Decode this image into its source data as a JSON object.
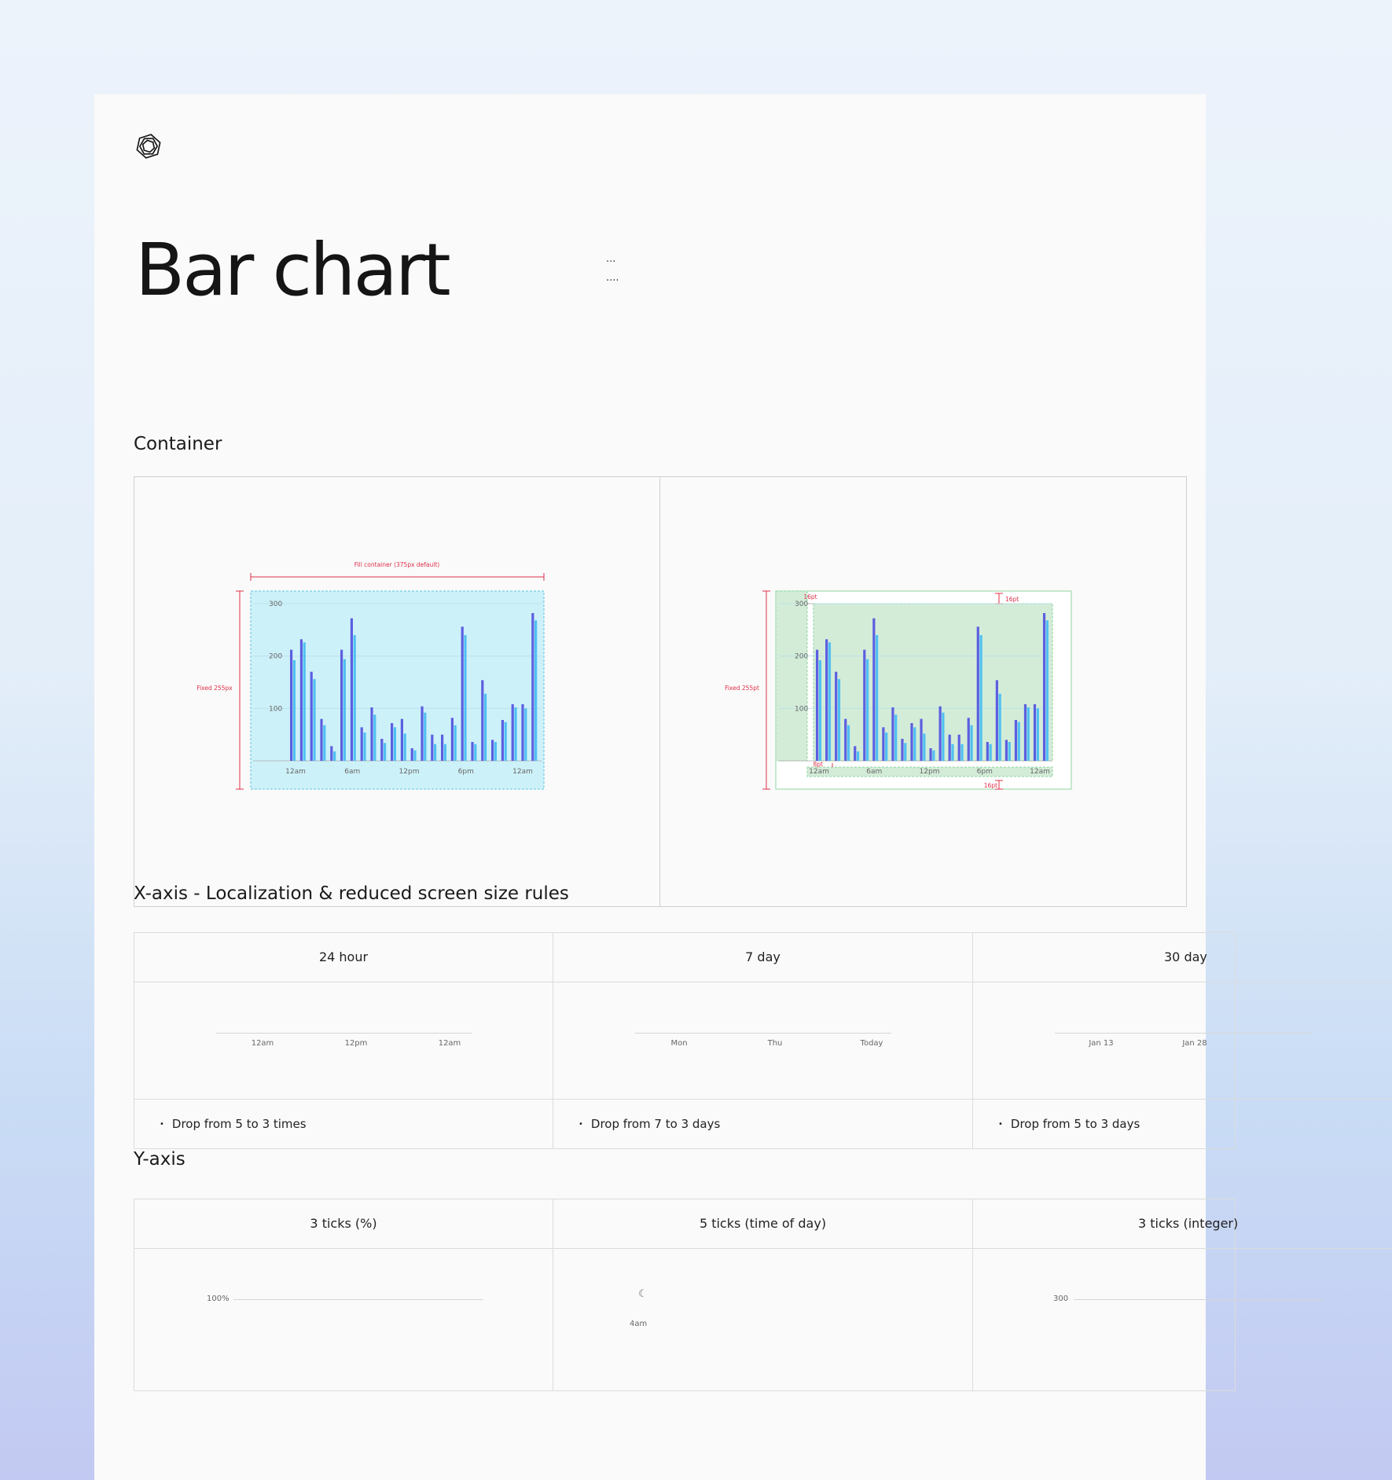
{
  "page": {
    "title": "Bar chart",
    "menu_dots": [
      "...",
      "...."
    ]
  },
  "container_section": {
    "title": "Container",
    "left_panel": {
      "width_note": "Fill container (375px default)",
      "height_note": "Fixed 255px"
    },
    "right_panel": {
      "height_note": "Fixed 255pt",
      "padding_top": "16pt",
      "padding_top_right": "16pt",
      "padding_bottom": "16pt",
      "gap_x_axis": "8pt"
    }
  },
  "chart_data": [
    {
      "type": "bar",
      "y_ticks": [
        "300",
        "200",
        "100"
      ],
      "ylim": [
        0,
        300
      ],
      "x_ticks": [
        "12am",
        "6am",
        "12pm",
        "6pm",
        "12am"
      ],
      "grid": true,
      "series": [
        {
          "color": "#5c5fe0",
          "values": [
            212,
            232,
            170,
            80,
            28,
            212,
            272,
            64,
            102,
            42,
            72,
            80,
            24,
            104,
            50,
            50,
            82,
            256,
            36,
            154,
            40,
            78,
            108,
            108,
            282
          ]
        },
        {
          "color": "#4fc0f2",
          "values": [
            192,
            226,
            156,
            68,
            18,
            194,
            240,
            54,
            88,
            34,
            64,
            52,
            20,
            92,
            32,
            32,
            68,
            240,
            32,
            128,
            36,
            74,
            102,
            100,
            268
          ]
        }
      ]
    },
    {
      "type": "bar",
      "y_ticks": [
        "300",
        "200",
        "100"
      ],
      "ylim": [
        0,
        300
      ],
      "x_ticks": [
        "12am",
        "6am",
        "12pm",
        "6pm",
        "12am"
      ],
      "grid": true,
      "series": [
        {
          "color": "#5c5fe0",
          "values": [
            212,
            232,
            170,
            80,
            28,
            212,
            272,
            64,
            102,
            42,
            72,
            80,
            24,
            104,
            50,
            50,
            82,
            256,
            36,
            154,
            40,
            78,
            108,
            108,
            282
          ]
        },
        {
          "color": "#4fc0f2",
          "values": [
            192,
            226,
            156,
            68,
            18,
            194,
            240,
            54,
            88,
            34,
            64,
            52,
            20,
            92,
            32,
            32,
            68,
            240,
            32,
            128,
            36,
            74,
            102,
            100,
            268
          ]
        }
      ]
    }
  ],
  "x_axis_section": {
    "title": "X-axis - Localization & reduced screen size rules",
    "columns": [
      {
        "header": "24 hour",
        "ticks": [
          "12am",
          "12pm",
          "12am"
        ],
        "rule": "Drop from 5 to 3 times"
      },
      {
        "header": "7 day",
        "ticks": [
          "Mon",
          "Thu",
          "Today"
        ],
        "rule": "Drop from 7 to 3 days"
      },
      {
        "header": "30 day",
        "ticks": [
          "Jan 13",
          "Jan 28"
        ],
        "rule": "Drop from 5 to 3 days"
      }
    ]
  },
  "y_axis_section": {
    "title": "Y-axis",
    "columns": [
      {
        "header": "3 ticks (%)",
        "labels": [
          "100%"
        ]
      },
      {
        "header": "5 ticks (time of day)",
        "labels": [
          "4am"
        ],
        "icon": "moon-icon"
      },
      {
        "header": "3 ticks (integer)",
        "labels": [
          "300"
        ]
      }
    ]
  }
}
